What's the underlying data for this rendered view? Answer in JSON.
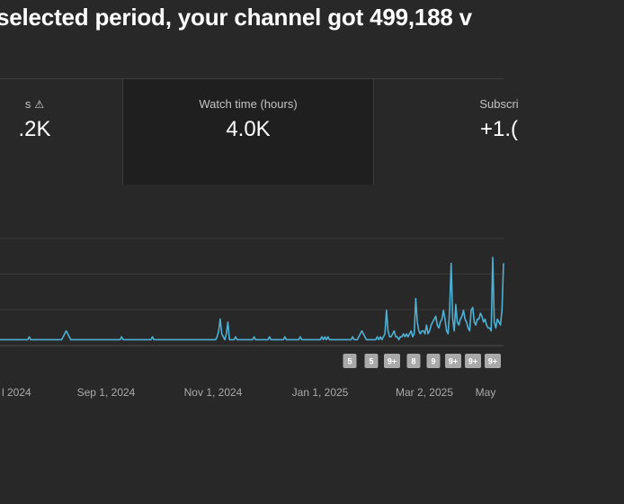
{
  "headline": "selected period, your channel got 499,188 v",
  "metrics": [
    {
      "label": "s",
      "value": ".2K",
      "warning": true
    },
    {
      "label": "Watch time (hours)",
      "value": "4.0K",
      "selected": true
    },
    {
      "label": "Subscri",
      "value": "+1.("
    }
  ],
  "colors": {
    "line": "#4fb0d4",
    "background": "#282828",
    "selected_card": "#1f1f1f",
    "grid": "#3a3a3a",
    "badge": "#a9a9a9"
  },
  "chart_data": {
    "type": "line",
    "x_tick_labels": [
      "l 2024",
      "Sep 1, 2024",
      "Nov 1, 2024",
      "Jan 1, 2025",
      "Mar 2, 2025",
      "May"
    ],
    "series": [
      {
        "values": [
          2,
          2,
          2,
          2,
          2,
          2,
          2,
          2,
          2,
          2,
          2,
          2,
          2,
          2,
          2,
          2,
          2,
          2,
          2,
          3,
          2,
          2,
          2,
          2,
          2,
          2,
          2,
          2,
          2,
          2,
          2,
          2,
          2,
          2,
          2,
          2,
          2,
          2,
          2,
          2,
          2,
          3,
          4,
          5,
          4,
          3,
          2,
          2,
          2,
          2,
          2,
          2,
          2,
          2,
          2,
          2,
          2,
          2,
          2,
          2,
          2,
          2,
          2,
          2,
          2,
          2,
          2,
          2,
          2,
          2,
          2,
          2,
          2,
          2,
          2,
          2,
          2,
          2,
          2,
          3,
          2,
          2,
          2,
          2,
          2,
          2,
          2,
          2,
          2,
          2,
          2,
          2,
          2,
          2,
          2,
          2,
          2,
          2,
          2,
          3,
          2,
          2,
          2,
          2,
          2,
          2,
          2,
          2,
          2,
          2,
          2,
          2,
          2,
          2,
          2,
          2,
          2,
          2,
          2,
          2,
          2,
          2,
          2,
          2,
          2,
          2,
          2,
          2,
          2,
          2,
          2,
          2,
          2,
          2,
          2,
          2,
          2,
          2,
          2,
          2,
          2,
          3,
          5,
          9,
          4,
          3,
          2,
          4,
          8,
          2,
          2,
          2,
          2,
          3,
          2,
          2,
          2,
          2,
          2,
          2,
          2,
          2,
          2,
          2,
          2,
          3,
          2,
          2,
          2,
          2,
          2,
          2,
          2,
          2,
          2,
          3,
          2,
          2,
          2,
          2,
          2,
          2,
          2,
          2,
          2,
          3,
          2,
          2,
          2,
          2,
          2,
          2,
          2,
          2,
          2,
          3,
          2,
          2,
          2,
          2,
          2,
          2,
          2,
          2,
          2,
          2,
          2,
          2,
          2,
          3,
          2,
          3,
          2,
          3,
          2,
          2,
          2,
          2,
          2,
          2,
          2,
          2,
          2,
          2,
          2,
          2,
          2,
          2,
          2,
          3,
          2,
          2,
          2,
          3,
          4,
          5,
          4,
          3,
          2,
          2,
          2,
          2,
          2,
          2,
          2,
          3,
          2,
          3,
          2,
          3,
          4,
          12,
          5,
          3,
          3,
          4,
          5,
          3,
          3,
          2,
          3,
          3,
          4,
          3,
          4,
          3,
          4,
          5,
          3,
          4,
          16,
          8,
          5,
          4,
          5,
          5,
          4,
          7,
          4,
          5,
          7,
          8,
          9,
          10,
          7,
          6,
          8,
          9,
          12,
          9,
          5,
          4,
          12,
          28,
          9,
          5,
          14,
          8,
          7,
          9,
          10,
          12,
          9,
          8,
          6,
          5,
          12,
          13,
          8,
          7,
          9,
          9,
          11,
          10,
          8,
          9,
          7,
          6,
          6,
          5,
          30,
          8,
          6,
          9,
          8,
          7,
          12,
          28
        ]
      }
    ],
    "markers": [
      "5",
      "5",
      "9+",
      "8",
      "9",
      "9+",
      "9+",
      "9+"
    ],
    "grid": true
  }
}
